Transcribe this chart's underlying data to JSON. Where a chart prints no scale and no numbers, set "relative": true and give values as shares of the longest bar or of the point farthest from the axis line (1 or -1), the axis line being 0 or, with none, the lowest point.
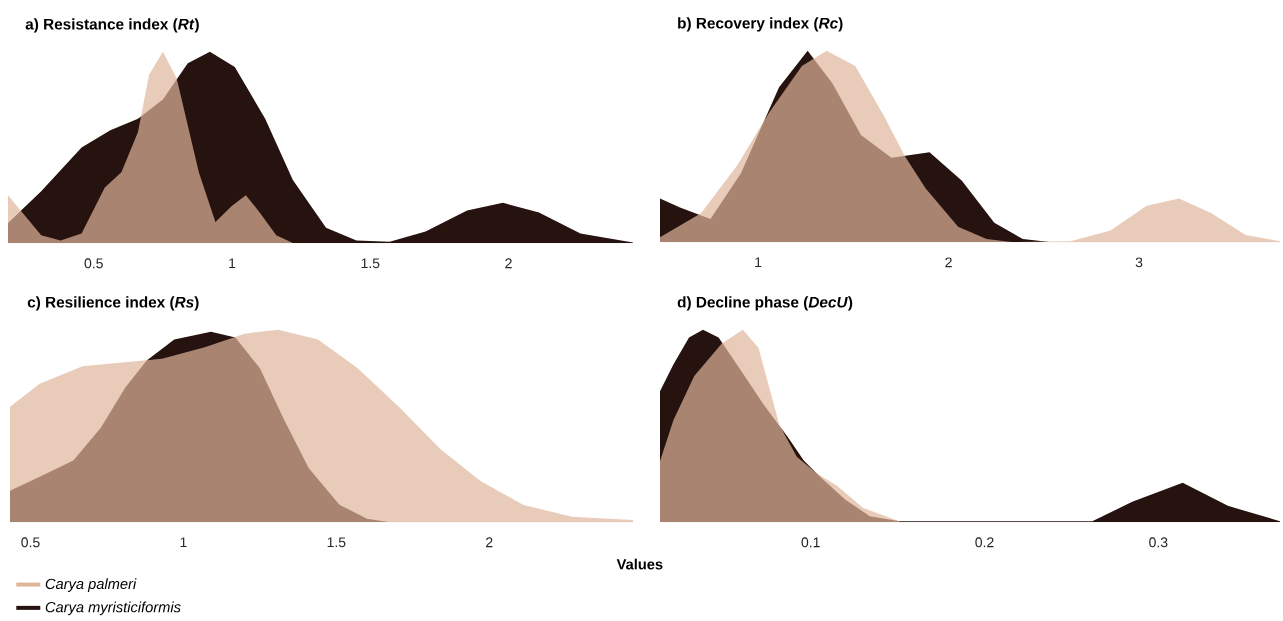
{
  "chart_data": [
    {
      "type": "area",
      "relative": true,
      "title": "a) Resistance index (*Rt*)",
      "xlim": [
        0.19,
        2.45
      ],
      "xticks": [
        0.5,
        1,
        1.5,
        2
      ],
      "tick_labels": "x",
      "series": [
        {
          "color": "#e0b59b",
          "x": [
            0.19,
            0.23,
            0.31,
            0.38,
            0.456,
            0.54,
            0.6,
            0.66,
            0.7,
            0.75,
            0.8,
            0.88,
            0.94,
            1.0,
            1.05,
            1.1,
            1.16,
            1.22
          ],
          "values": [
            0.25,
            0.18,
            0.04,
            0.013,
            0.05,
            0.29,
            0.37,
            0.58,
            0.88,
            1.0,
            0.86,
            0.37,
            0.11,
            0.195,
            0.25,
            0.16,
            0.04,
            0.0
          ]
        },
        {
          "color": "#261310",
          "x": [
            0.19,
            0.31,
            0.456,
            0.56,
            0.66,
            0.75,
            0.84,
            0.92,
            1.01,
            1.12,
            1.22,
            1.34,
            1.45,
            1.57,
            1.7,
            1.85,
            1.98,
            2.11,
            2.26,
            2.45
          ],
          "values": [
            0.105,
            0.27,
            0.5,
            0.59,
            0.65,
            0.75,
            0.94,
            1.0,
            0.92,
            0.65,
            0.33,
            0.08,
            0.013,
            0.006,
            0.06,
            0.17,
            0.21,
            0.16,
            0.05,
            0.002
          ]
        }
      ]
    },
    {
      "type": "area",
      "relative": true,
      "title": "b) Recovery index (*Rc*)",
      "xlim": [
        0.485,
        3.74
      ],
      "xticks": [
        1,
        2,
        3
      ],
      "tick_labels": "x",
      "series": [
        {
          "color": "#e0b59b",
          "x": [
            0.485,
            0.7,
            0.89,
            1.06,
            1.23,
            1.36,
            1.51,
            1.66,
            1.77,
            1.88,
            2.05,
            2.2,
            2.33,
            2.64,
            2.85,
            3.04,
            3.21,
            3.38,
            3.56,
            3.74
          ],
          "values": [
            0.025,
            0.15,
            0.4,
            0.68,
            0.92,
            1.0,
            0.92,
            0.66,
            0.45,
            0.28,
            0.08,
            0.015,
            0,
            0.004,
            0.06,
            0.19,
            0.227,
            0.15,
            0.036,
            0.004
          ]
        },
        {
          "color": "#261310",
          "x": [
            0.485,
            0.59,
            0.75,
            0.91,
            1.11,
            1.26,
            1.39,
            1.54,
            1.7,
            1.9,
            2.07,
            2.24,
            2.39,
            2.53
          ],
          "values": [
            0.227,
            0.18,
            0.12,
            0.36,
            0.81,
            1.0,
            0.83,
            0.56,
            0.44,
            0.47,
            0.32,
            0.1,
            0.015,
            0
          ]
        }
      ]
    },
    {
      "type": "area",
      "relative": true,
      "title": "c) Resilience index (*Rs*)",
      "xlabel": "Values",
      "legend": "bottom left",
      "xlim": [
        0.433,
        2.47
      ],
      "xticks": [
        0.5,
        1,
        1.5,
        2
      ],
      "tick_labels": "x",
      "series": [
        {
          "name": "Carya palmeri",
          "color": "#e0b59b",
          "x": [
            0.433,
            0.53,
            0.67,
            0.8,
            0.93,
            1.07,
            1.2,
            1.31,
            1.44,
            1.57,
            1.71,
            1.84,
            1.97,
            2.11,
            2.27,
            2.47
          ],
          "values": [
            0.6,
            0.72,
            0.81,
            0.83,
            0.85,
            0.91,
            0.98,
            1.0,
            0.95,
            0.8,
            0.59,
            0.38,
            0.215,
            0.09,
            0.027,
            0.01
          ]
        },
        {
          "name": "Carya myristiciformis",
          "color": "#261310",
          "x": [
            0.433,
            0.53,
            0.64,
            0.73,
            0.81,
            0.88,
            0.97,
            1.09,
            1.17,
            1.25,
            1.33,
            1.41,
            1.51,
            1.6,
            1.67
          ],
          "values": [
            0.163,
            0.236,
            0.32,
            0.49,
            0.7,
            0.84,
            0.95,
            0.99,
            0.96,
            0.8,
            0.53,
            0.28,
            0.09,
            0.017,
            0
          ]
        }
      ]
    },
    {
      "type": "area",
      "relative": true,
      "title": "d) Decline phase (*DecU*)",
      "xlim": [
        0.0133,
        0.37
      ],
      "xticks": [
        0.1,
        0.2,
        0.3
      ],
      "tick_labels": "x",
      "series": [
        {
          "color": "#e0b59b",
          "x": [
            0.0133,
            0.021,
            0.033,
            0.049,
            0.061,
            0.07,
            0.082,
            0.092,
            0.104,
            0.115,
            0.13,
            0.151
          ],
          "values": [
            0.316,
            0.53,
            0.76,
            0.93,
            1.0,
            0.905,
            0.505,
            0.34,
            0.25,
            0.19,
            0.074,
            0.004
          ]
        },
        {
          "color": "#261310",
          "x": [
            0.0133,
            0.021,
            0.03,
            0.038,
            0.047,
            0.059,
            0.073,
            0.087,
            0.096,
            0.106,
            0.12,
            0.134,
            0.151,
            0.262,
            0.285,
            0.314,
            0.34,
            0.37
          ],
          "values": [
            0.68,
            0.82,
            0.96,
            1.0,
            0.96,
            0.8,
            0.61,
            0.44,
            0.32,
            0.23,
            0.116,
            0.03,
            0.004,
            0.004,
            0.105,
            0.204,
            0.084,
            0.004
          ]
        }
      ]
    }
  ]
}
